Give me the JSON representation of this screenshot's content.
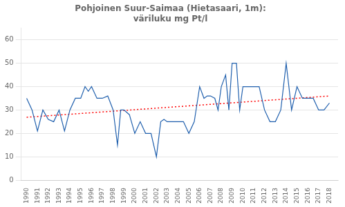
{
  "chart_data": {
    "type": "line",
    "title": "Pohjoinen Suur-Saimaa (Hietasaari, 1m):\nväriluku mg Pt/l",
    "x": [
      1990.0,
      1990.5,
      1991.0,
      1991.5,
      1992.0,
      1992.5,
      1993.0,
      1993.5,
      1994.0,
      1994.5,
      1995.0,
      1995.4,
      1995.7,
      1996.0,
      1996.5,
      1997.0,
      1997.5,
      1998.0,
      1998.4,
      1998.7,
      1999.0,
      1999.5,
      2000.0,
      2000.5,
      2001.0,
      2001.5,
      2002.0,
      2002.4,
      2002.7,
      2003.0,
      2003.5,
      2004.0,
      2004.5,
      2005.0,
      2005.5,
      2006.0,
      2006.4,
      2006.7,
      2007.0,
      2007.4,
      2007.7,
      2008.0,
      2008.4,
      2008.7,
      2009.0,
      2009.4,
      2009.7,
      2010.0,
      2010.5,
      2011.0,
      2011.5,
      2012.0,
      2012.5,
      2013.0,
      2013.5,
      2014.0,
      2014.5,
      2015.0,
      2015.5,
      2016.0,
      2016.5,
      2017.0,
      2017.5,
      2018.0
    ],
    "series": [
      {
        "color": "#1f5fad",
        "line_style": "solid",
        "values": [
          35,
          30,
          21,
          30,
          26,
          25,
          30,
          21,
          30,
          35,
          35,
          40,
          38,
          40,
          35,
          35,
          36,
          30,
          15,
          30,
          30,
          28,
          20,
          25,
          20,
          20,
          10,
          25,
          26,
          25,
          25,
          25,
          25,
          20,
          25,
          40,
          35,
          36,
          36,
          35,
          30,
          40,
          45,
          30,
          50,
          50,
          30,
          40,
          40,
          40,
          40,
          30,
          25,
          25,
          30,
          50,
          30,
          40,
          35,
          35,
          35,
          30,
          30,
          33
        ]
      },
      {
        "color": "#ff0000",
        "line_style": "dotted",
        "x": [
          1990.0,
          2018.0
        ],
        "values": [
          26.888,
          35.994
        ]
      }
    ],
    "xlim": [
      1989.5,
      2018.8
    ],
    "xticks": [
      1990,
      1991,
      1992,
      1993,
      1994,
      1995,
      1996,
      1997,
      1998,
      1999,
      2000,
      2001,
      2002,
      2003,
      2004,
      2005,
      2006,
      2007,
      2008,
      2009,
      2010,
      2011,
      2012,
      2013,
      2014,
      2015,
      2016,
      2017,
      2018
    ],
    "ylim": [
      0,
      65
    ],
    "yticks": [
      0,
      10,
      20,
      30,
      40,
      50,
      60
    ],
    "grid": true
  }
}
